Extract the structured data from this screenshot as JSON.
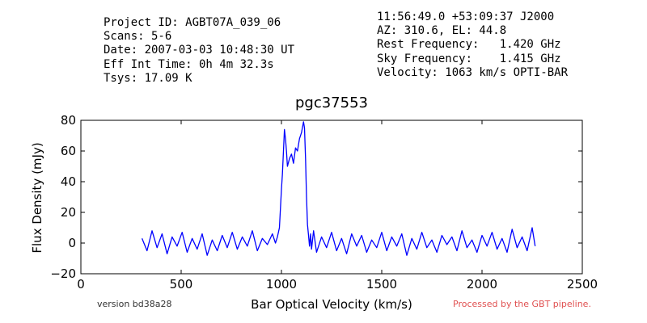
{
  "header": {
    "left": [
      "Project ID: AGBT07A_039_06",
      "Scans: 5-6",
      "Date: 2007-03-03 10:48:30 UT",
      "Eff Int Time: 0h 4m 32.3s",
      "Tsys: 17.09 K"
    ],
    "right": [
      "11:56:49.0 +53:09:37 J2000",
      "AZ: 310.6, EL: 44.8",
      "Rest Frequency:   1.420 GHz",
      "Sky Frequency:    1.415 GHz",
      "Velocity: 1063 km/s OPTI-BAR"
    ]
  },
  "footer": {
    "version": "version bd38a28",
    "processed": "Processed by the GBT pipeline."
  },
  "colors": {
    "line": "#0000ff",
    "footer_processed": "#e05050"
  },
  "chart_data": {
    "type": "line",
    "title": "pgc37553",
    "xlabel": "Bar Optical Velocity (km/s)",
    "ylabel": "Flux Density (mJy)",
    "xlim": [
      0,
      2500
    ],
    "ylim": [
      -20,
      80
    ],
    "xticks": [
      0,
      500,
      1000,
      1500,
      2000,
      2500
    ],
    "yticks": [
      -20,
      0,
      20,
      40,
      60,
      80
    ],
    "grid": false,
    "series": [
      {
        "color": "#0000ff",
        "x": [
          305,
          330,
          355,
          380,
          405,
          430,
          455,
          480,
          505,
          530,
          555,
          580,
          605,
          630,
          655,
          680,
          705,
          730,
          755,
          780,
          805,
          830,
          855,
          880,
          905,
          930,
          955,
          970,
          980,
          990,
          1000,
          1005,
          1010,
          1015,
          1020,
          1025,
          1030,
          1040,
          1050,
          1060,
          1070,
          1080,
          1090,
          1100,
          1110,
          1115,
          1120,
          1125,
          1130,
          1135,
          1140,
          1145,
          1150,
          1160,
          1175,
          1200,
          1225,
          1250,
          1275,
          1300,
          1325,
          1350,
          1375,
          1400,
          1425,
          1450,
          1475,
          1500,
          1525,
          1550,
          1575,
          1600,
          1625,
          1650,
          1675,
          1700,
          1725,
          1750,
          1775,
          1800,
          1825,
          1850,
          1875,
          1900,
          1925,
          1950,
          1975,
          2000,
          2025,
          2050,
          2075,
          2100,
          2125,
          2150,
          2175,
          2200,
          2225,
          2250,
          2265
        ],
        "y": [
          3,
          -5,
          8,
          -3,
          6,
          -7,
          4,
          -2,
          7,
          -6,
          3,
          -4,
          6,
          -8,
          2,
          -5,
          5,
          -3,
          7,
          -4,
          4,
          -2,
          8,
          -5,
          3,
          -1,
          6,
          0,
          4,
          10,
          35,
          45,
          60,
          74,
          68,
          60,
          50,
          55,
          58,
          52,
          62,
          60,
          68,
          72,
          79,
          75,
          55,
          30,
          12,
          5,
          -2,
          6,
          -4,
          8,
          -6,
          4,
          -3,
          7,
          -5,
          3,
          -7,
          6,
          -2,
          5,
          -6,
          2,
          -3,
          7,
          -5,
          4,
          -2,
          6,
          -8,
          3,
          -4,
          7,
          -3,
          2,
          -6,
          5,
          -1,
          4,
          -5,
          8,
          -3,
          2,
          -6,
          5,
          -2,
          7,
          -4,
          3,
          -6,
          9,
          -3,
          4,
          -5,
          10,
          -2
        ]
      }
    ]
  }
}
